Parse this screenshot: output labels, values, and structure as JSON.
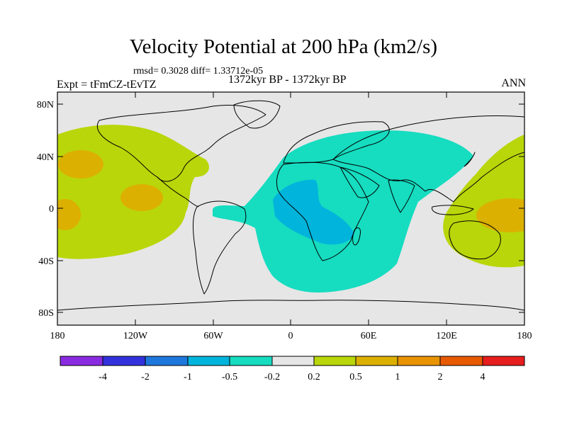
{
  "title": "Velocity Potential at 200 hPa (km2/s)",
  "stats_line": "rmsd= 0.3028 diff= 1.33712e-05",
  "experiment": "Expt = tFmCZ-tEvTZ",
  "period": "1372kyr BP - 1372kyr BP",
  "season": "ANN",
  "colors": {
    "background_land": "#e6e6e6",
    "coastline": "#000000",
    "pos_0_2": "#b9d60a",
    "pos_0_5": "#dcb000",
    "neg_0_2": "#16dcc0",
    "neg_0_5": "#00b4dc"
  },
  "map": {
    "lat_ticks": [
      "80N",
      "40N",
      "0",
      "40S",
      "80S"
    ],
    "lon_ticks": [
      "180",
      "120W",
      "60W",
      "0",
      "60E",
      "120E",
      "180"
    ]
  },
  "colorbar": {
    "colors": [
      "#8a2be2",
      "#3232dc",
      "#1e78dc",
      "#00b4dc",
      "#16dcc0",
      "#e6e6e6",
      "#b9d60a",
      "#dcb000",
      "#e89400",
      "#e85a00",
      "#e61e1e"
    ],
    "labels": [
      "-4",
      "-2",
      "-1",
      "-0.5",
      "-0.2",
      "0.2",
      "0.5",
      "1",
      "2",
      "4"
    ]
  }
}
